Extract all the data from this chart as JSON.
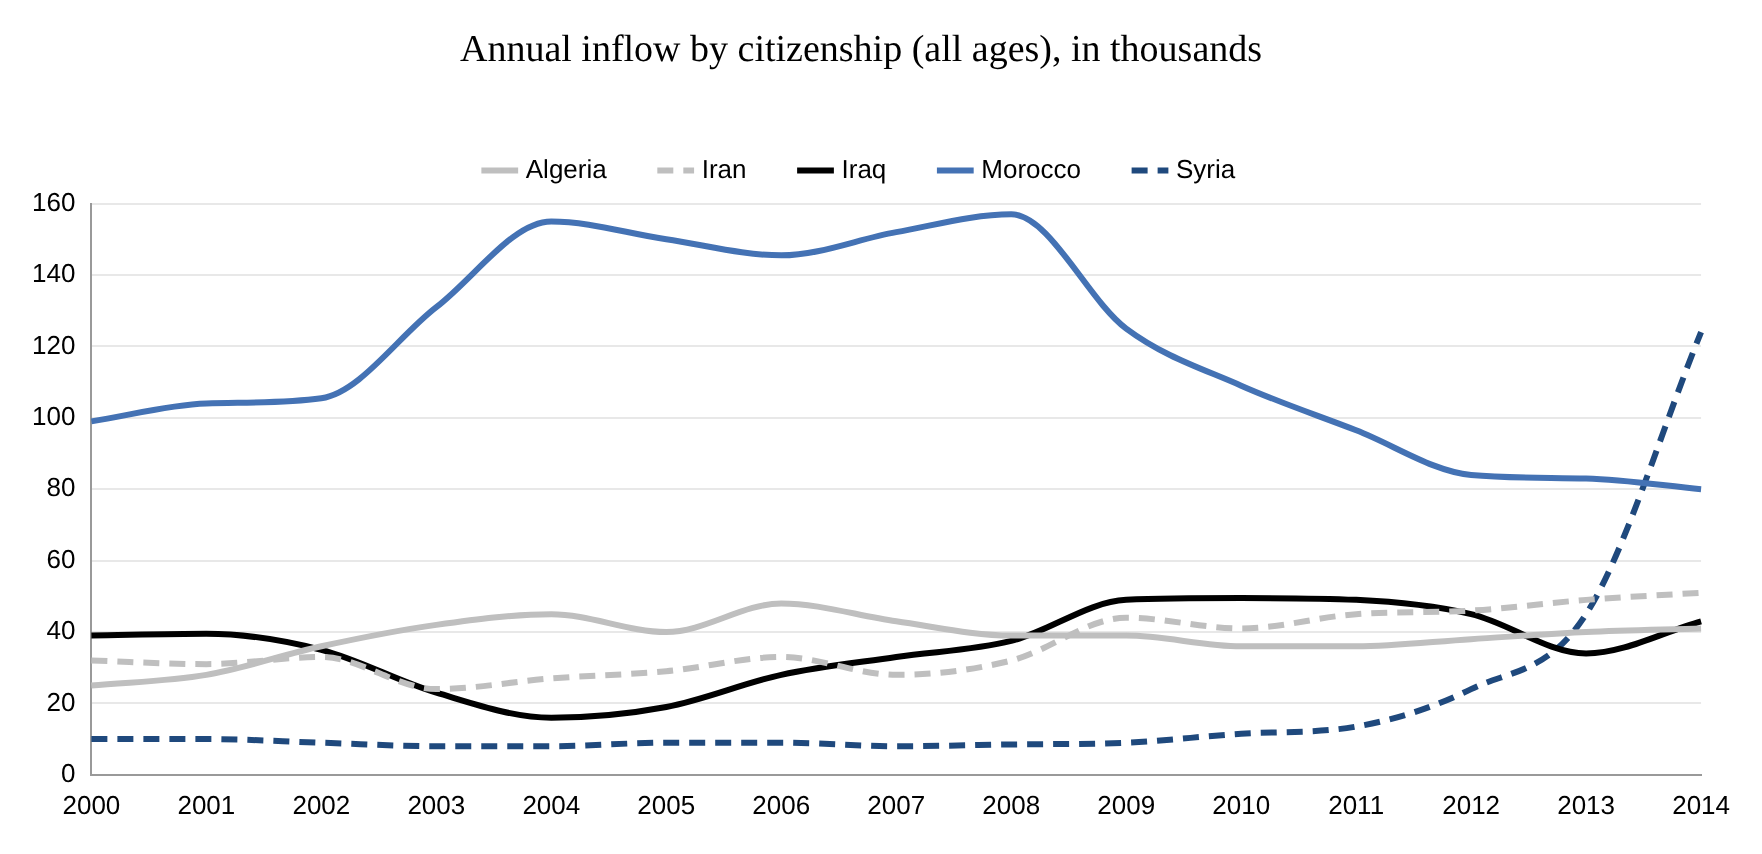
{
  "chart_data": {
    "type": "line",
    "title": "Annual inflow by citizenship (all ages), in thousands",
    "categories": [
      "2000",
      "2001",
      "2002",
      "2003",
      "2004",
      "2005",
      "2006",
      "2007",
      "2008",
      "2009",
      "2010",
      "2011",
      "2012",
      "2013",
      "2014"
    ],
    "series": [
      {
        "name": "Algeria",
        "color": "#bfbfbf",
        "line_style": "solid",
        "values": [
          25,
          28,
          36,
          42,
          45,
          40,
          48,
          43,
          39,
          39,
          36,
          36,
          38,
          40,
          41
        ]
      },
      {
        "name": "Iran",
        "color": "#bfbfbf",
        "line_style": "dashed",
        "values": [
          32,
          31,
          33,
          24,
          27,
          29,
          33,
          28,
          32,
          44,
          41,
          45,
          46,
          49,
          51
        ]
      },
      {
        "name": "Iraq",
        "color": "#000000",
        "line_style": "solid",
        "values": [
          39,
          39.5,
          35,
          23,
          16,
          19,
          28,
          33,
          37.5,
          49,
          49.5,
          49,
          45,
          34,
          43
        ]
      },
      {
        "name": "Morocco",
        "color": "#4472b4",
        "line_style": "solid",
        "values": [
          99,
          104,
          105.5,
          131,
          155,
          150,
          145.5,
          152,
          157,
          125,
          109,
          96.5,
          84,
          83,
          80
        ]
      },
      {
        "name": "Syria",
        "color": "#1f497d",
        "line_style": "dashed",
        "values": [
          10,
          10,
          9,
          8,
          8,
          9,
          9,
          8,
          8.5,
          9,
          11.5,
          13.5,
          24,
          45,
          124
        ]
      }
    ],
    "ylim": [
      0,
      160
    ],
    "yticks": [
      0,
      20,
      40,
      60,
      80,
      100,
      120,
      140,
      160
    ],
    "grid": "y",
    "legend": "top",
    "marker": "none"
  }
}
